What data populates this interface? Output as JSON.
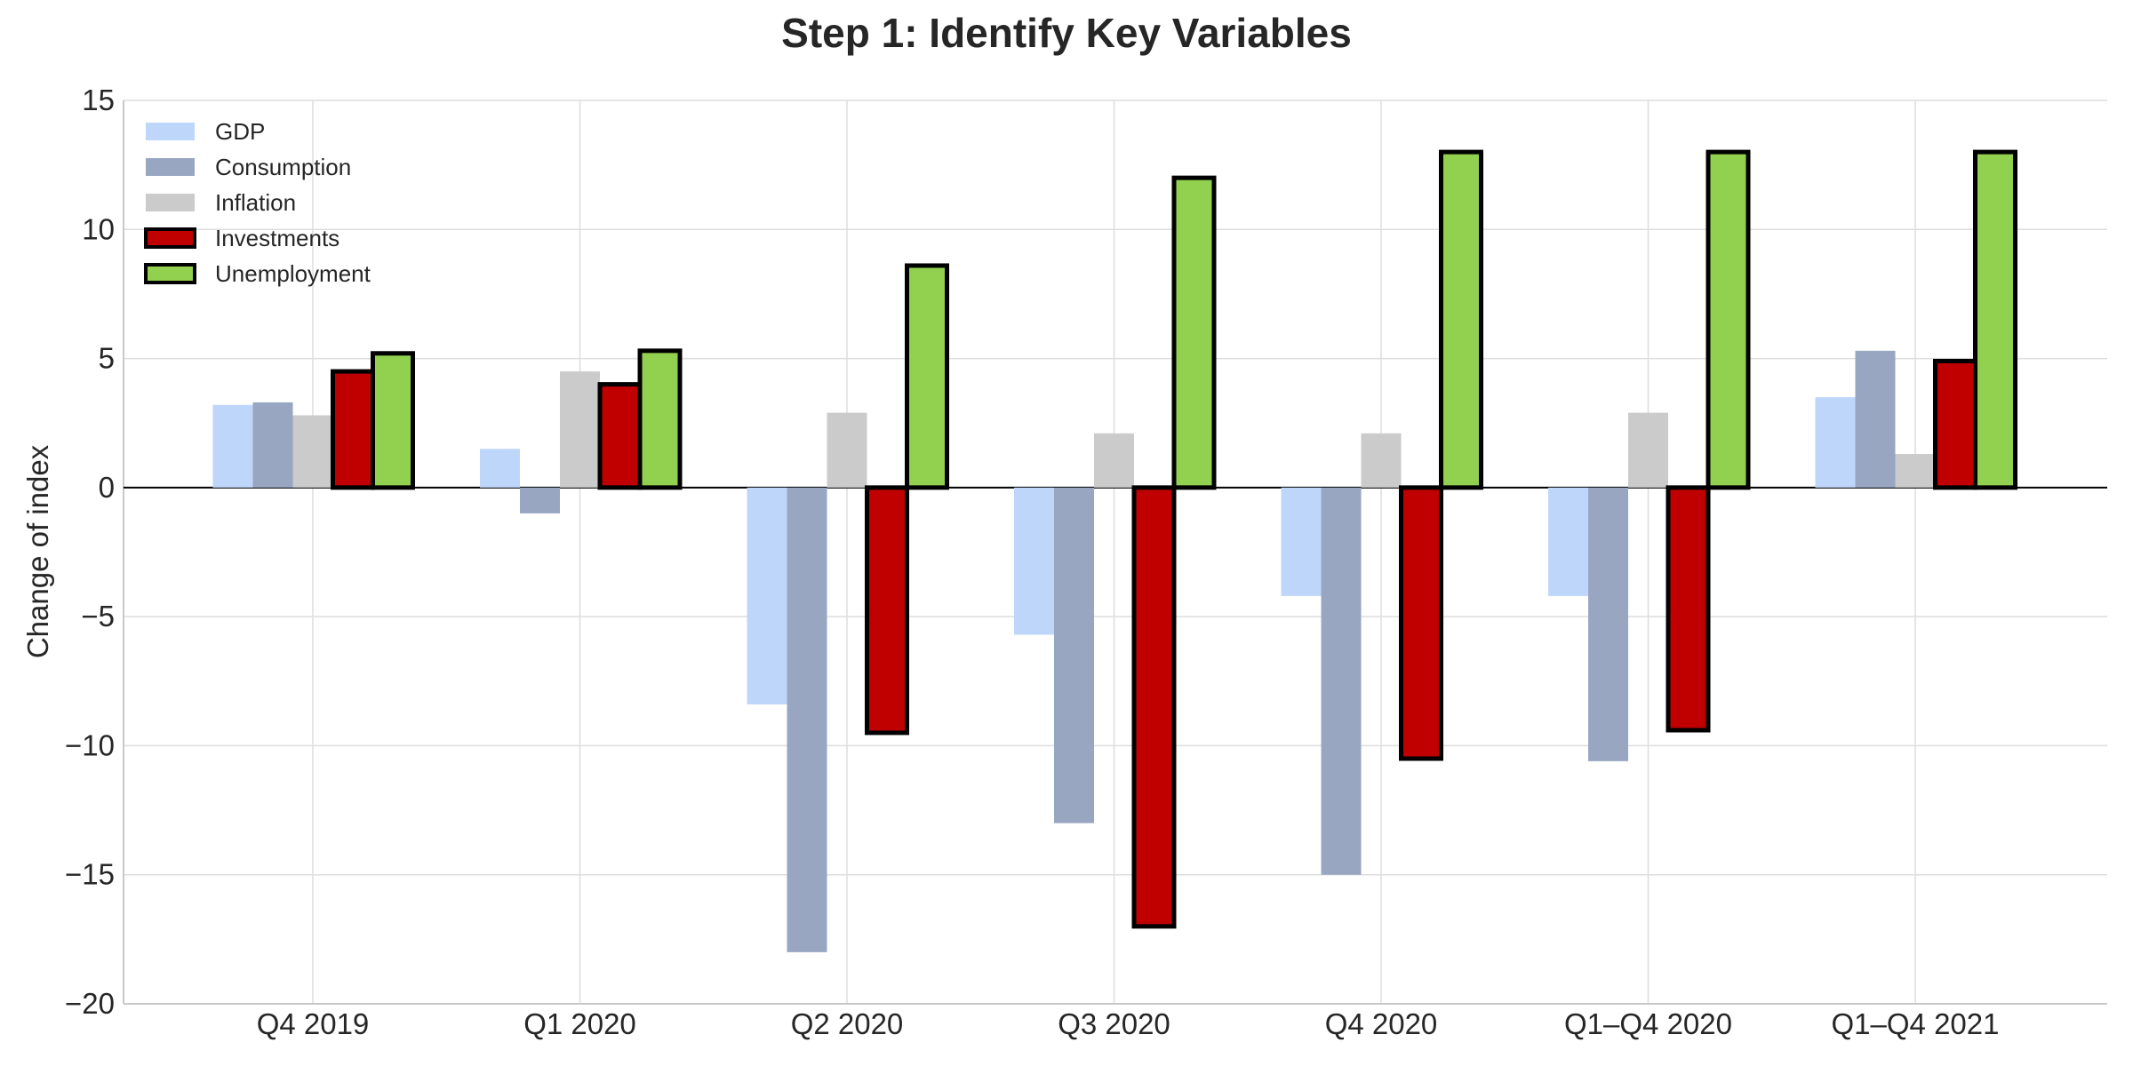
{
  "chart_data": {
    "type": "bar",
    "title": "Step 1: Identify Key Variables",
    "xlabel": "",
    "ylabel": "Change of index",
    "ylim": [
      -20,
      15
    ],
    "yticks": [
      15,
      10,
      5,
      0,
      -5,
      -10,
      -15,
      -20
    ],
    "ytick_labels": [
      "15",
      "10",
      "5",
      "0",
      "−5",
      "−10",
      "−15",
      "−20"
    ],
    "grid": true,
    "legend_position": "top-left",
    "categories": [
      "Q4 2019",
      "Q1 2020",
      "Q2 2020",
      "Q3 2020",
      "Q4 2020",
      "Q1–Q4 2020",
      "Q1–Q4 2021"
    ],
    "series": [
      {
        "name": "GDP",
        "color": "#bfd6fb",
        "outlined": false,
        "values": [
          3.2,
          1.5,
          -8.4,
          -5.7,
          -4.2,
          -4.2,
          3.5
        ]
      },
      {
        "name": "Consumption",
        "color": "#98a6c2",
        "outlined": false,
        "values": [
          3.3,
          -1.0,
          -18.0,
          -13.0,
          -15.0,
          -10.6,
          5.3
        ]
      },
      {
        "name": "Inflation",
        "color": "#cbcbcb",
        "outlined": false,
        "values": [
          2.8,
          4.5,
          2.9,
          2.1,
          2.1,
          2.9,
          1.3
        ]
      },
      {
        "name": "Investments",
        "color": "#c00000",
        "outlined": true,
        "values": [
          4.5,
          4.0,
          -9.5,
          -17.0,
          -10.5,
          -9.4,
          4.9
        ]
      },
      {
        "name": "Unemployment",
        "color": "#92d050",
        "outlined": true,
        "values": [
          5.2,
          5.3,
          8.6,
          12.0,
          13.0,
          13.0,
          13.0
        ]
      }
    ]
  }
}
